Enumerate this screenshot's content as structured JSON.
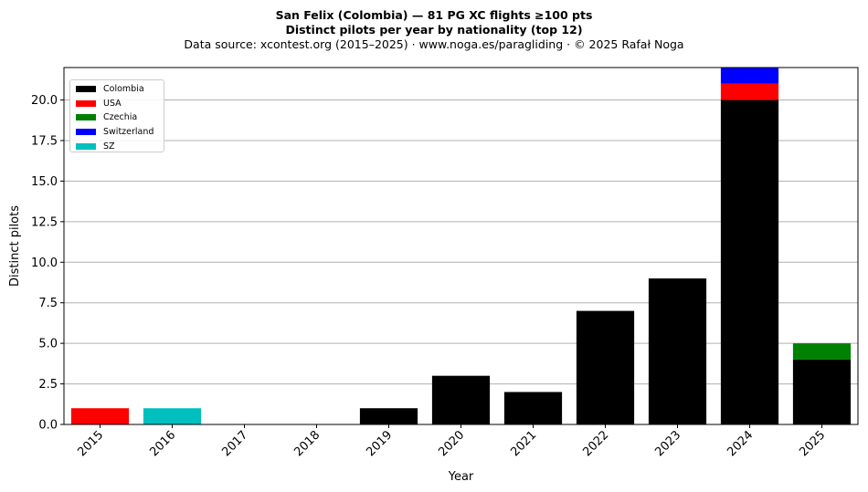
{
  "title_line1": "San Felix (Colombia)  —  81 PG XC flights ≥100 pts",
  "title_line2": "Distinct pilots per year by nationality (top 12)",
  "subtitle": "Data source: xcontest.org (2015–2025)  ·  www.noga.es/paragliding  ·  © 2025 Rafał Noga",
  "chart_data": {
    "type": "bar",
    "stacked": true,
    "title": "San Felix (Colombia)  —  81 PG XC flights ≥100 pts",
    "xlabel": "Year",
    "ylabel": "Distinct pilots",
    "categories": [
      "2015",
      "2016",
      "2017",
      "2018",
      "2019",
      "2020",
      "2021",
      "2022",
      "2023",
      "2024",
      "2025"
    ],
    "ylim": [
      0,
      22
    ],
    "yticks": [
      0,
      2.5,
      5,
      7.5,
      10,
      12.5,
      15,
      17.5,
      20
    ],
    "ytick_labels": [
      "0.0",
      "2.5",
      "5.0",
      "7.5",
      "10.0",
      "12.5",
      "15.0",
      "17.5",
      "20.0"
    ],
    "grid": "y",
    "legend_position": "top-left",
    "series": [
      {
        "name": "Colombia",
        "color": "#000000",
        "values": [
          0,
          0,
          0,
          0,
          1,
          3,
          2,
          7,
          9,
          20,
          4
        ]
      },
      {
        "name": "USA",
        "color": "#ff0000",
        "values": [
          1,
          0,
          0,
          0,
          0,
          0,
          0,
          0,
          0,
          1,
          0
        ]
      },
      {
        "name": "Czechia",
        "color": "#008000",
        "values": [
          0,
          0,
          0,
          0,
          0,
          0,
          0,
          0,
          0,
          0,
          1
        ]
      },
      {
        "name": "Switzerland",
        "color": "#0000ff",
        "values": [
          0,
          0,
          0,
          0,
          0,
          0,
          0,
          0,
          0,
          1,
          0
        ]
      },
      {
        "name": "SZ",
        "color": "#00bfbf",
        "values": [
          0,
          1,
          0,
          0,
          0,
          0,
          0,
          0,
          0,
          0,
          0
        ]
      }
    ]
  }
}
